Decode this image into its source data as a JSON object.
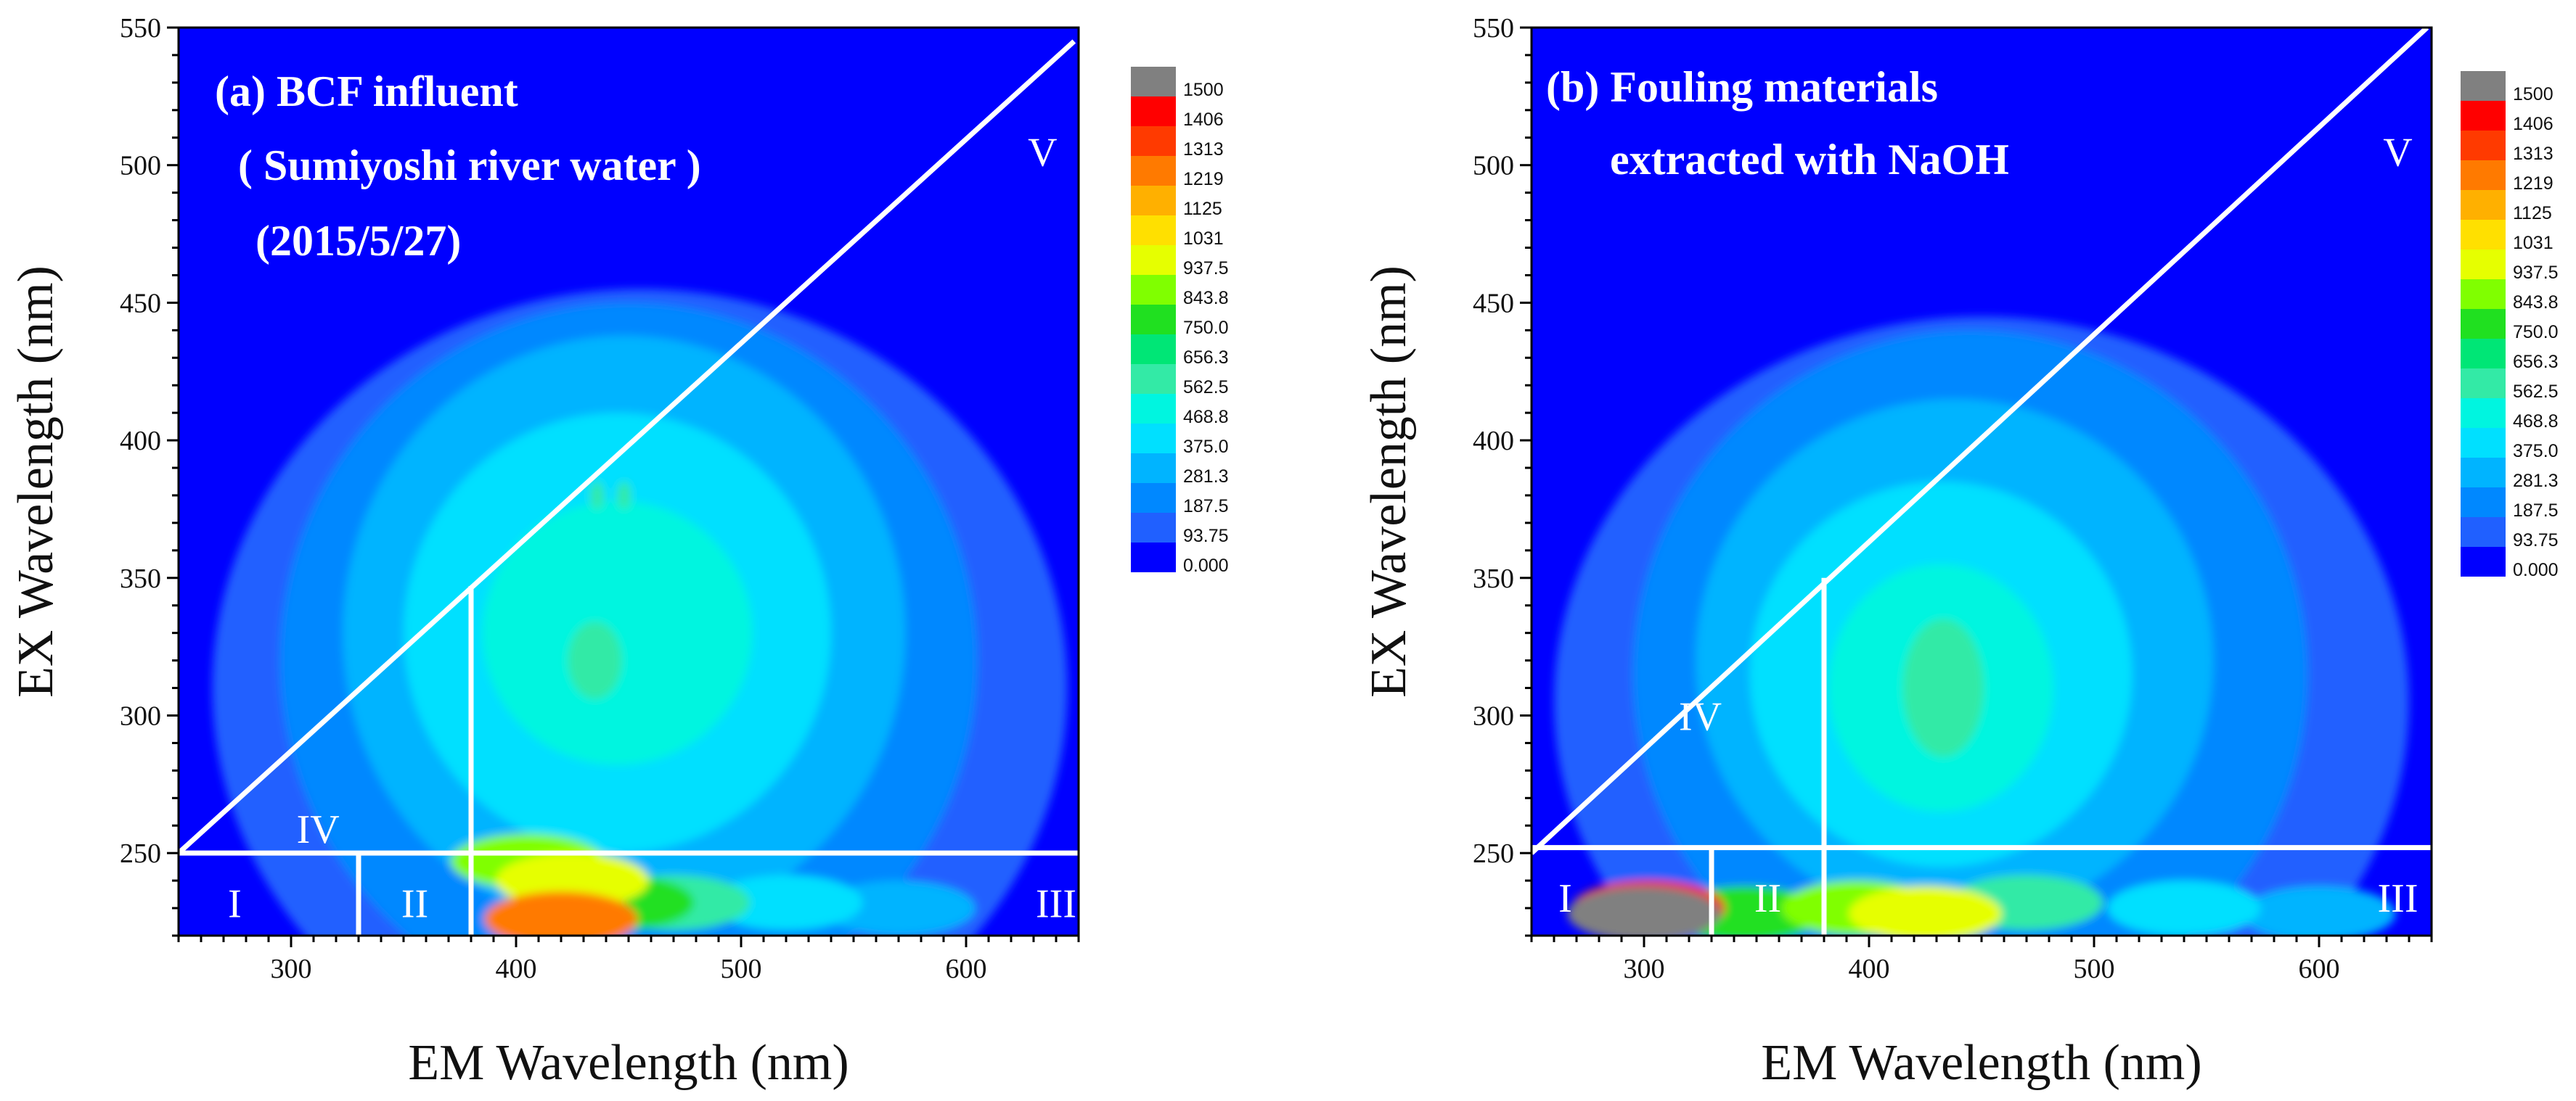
{
  "chart_data": [
    {
      "type": "heatmap",
      "subtype": "excitation-emission matrix (contour)",
      "panel_title_lines": [
        "(a) BCF influent",
        "( Sumiyoshi river water )",
        "(2015/5/27)"
      ],
      "xlabel": "EM Wavelength (nm)",
      "ylabel": "EX Wavelength (nm)",
      "xlim": [
        250,
        650
      ],
      "ylim": [
        220,
        550
      ],
      "x_ticks": [
        "300",
        "400",
        "500",
        "600"
      ],
      "y_ticks": [
        "250",
        "300",
        "350",
        "400",
        "450",
        "500",
        "550"
      ],
      "region_labels": [
        {
          "text": "I",
          "x": 275,
          "y": 232
        },
        {
          "text": "II",
          "x": 355,
          "y": 232
        },
        {
          "text": "III",
          "x": 640,
          "y": 232
        },
        {
          "text": "IV",
          "x": 312,
          "y": 259
        },
        {
          "text": "V",
          "x": 634,
          "y": 505
        }
      ],
      "region_lines": [
        {
          "from": [
            250,
            250
          ],
          "to": [
            648,
            545
          ]
        },
        {
          "from": [
            250,
            250
          ],
          "to": [
            650,
            250
          ]
        },
        {
          "from": [
            330,
            220
          ],
          "to": [
            330,
            250
          ]
        },
        {
          "from": [
            380,
            220
          ],
          "to": [
            380,
            347
          ]
        }
      ],
      "peaks": [
        {
          "ex": 320,
          "em": 435,
          "level": 562.5,
          "rx": 12,
          "ry": 14
        },
        {
          "ex": 330,
          "em": 445,
          "level": 468.8,
          "rx": 60,
          "ry": 48
        },
        {
          "ex": 330,
          "em": 445,
          "level": 375.0,
          "rx": 95,
          "ry": 80
        },
        {
          "ex": 330,
          "em": 448,
          "level": 281.3,
          "rx": 125,
          "ry": 108
        },
        {
          "ex": 320,
          "em": 450,
          "level": 187.5,
          "rx": 155,
          "ry": 130
        },
        {
          "ex": 310,
          "em": 455,
          "level": 93.75,
          "rx": 190,
          "ry": 145
        },
        {
          "ex": 380,
          "em": 436,
          "level": 562.5,
          "rx": 3,
          "ry": 5
        },
        {
          "ex": 380,
          "em": 448,
          "level": 562.5,
          "rx": 3,
          "ry": 5
        }
      ],
      "scatter_band": [
        {
          "em": 405,
          "ex": 247,
          "level": 843.8
        },
        {
          "em": 425,
          "ex": 240,
          "level": 937.5
        },
        {
          "em": 420,
          "ex": 226,
          "level": 1219
        },
        {
          "em": 445,
          "ex": 232,
          "level": 750.0
        },
        {
          "em": 470,
          "ex": 232,
          "level": 562.5
        },
        {
          "em": 520,
          "ex": 232,
          "level": 375.0
        },
        {
          "em": 570,
          "ex": 230,
          "level": 281.3
        }
      ]
    },
    {
      "type": "heatmap",
      "subtype": "excitation-emission matrix (contour)",
      "panel_title_lines": [
        "(b) Fouling materials",
        "extracted with NaOH"
      ],
      "xlabel": "EM Wavelength (nm)",
      "ylabel": "EX Wavelength (nm)",
      "xlim": [
        250,
        650
      ],
      "ylim": [
        220,
        550
      ],
      "x_ticks": [
        "300",
        "400",
        "500",
        "600"
      ],
      "y_ticks": [
        "250",
        "300",
        "350",
        "400",
        "450",
        "500",
        "550"
      ],
      "region_labels": [
        {
          "text": "I",
          "x": 265,
          "y": 234
        },
        {
          "text": "II",
          "x": 355,
          "y": 234
        },
        {
          "text": "III",
          "x": 635,
          "y": 234
        },
        {
          "text": "IV",
          "x": 325,
          "y": 300
        },
        {
          "text": "V",
          "x": 635,
          "y": 505
        }
      ],
      "region_lines": [
        {
          "from": [
            250,
            250
          ],
          "to": [
            648,
            550
          ]
        },
        {
          "from": [
            250,
            252
          ],
          "to": [
            650,
            252
          ]
        },
        {
          "from": [
            330,
            220
          ],
          "to": [
            330,
            252
          ]
        },
        {
          "from": [
            380,
            220
          ],
          "to": [
            380,
            350
          ]
        }
      ],
      "peaks": [
        {
          "ex": 310,
          "em": 433,
          "level": 562.5,
          "rx": 18,
          "ry": 25
        },
        {
          "ex": 310,
          "em": 432,
          "level": 468.8,
          "rx": 50,
          "ry": 45
        },
        {
          "ex": 315,
          "em": 432,
          "level": 375.0,
          "rx": 85,
          "ry": 70
        },
        {
          "ex": 320,
          "em": 438,
          "level": 281.3,
          "rx": 115,
          "ry": 95
        },
        {
          "ex": 315,
          "em": 445,
          "level": 187.5,
          "rx": 150,
          "ry": 125
        },
        {
          "ex": 305,
          "em": 450,
          "level": 93.75,
          "rx": 190,
          "ry": 140
        }
      ],
      "scatter_band": [
        {
          "em": 300,
          "ex": 228,
          "level": 1500
        },
        {
          "em": 302,
          "ex": 230,
          "level": 1406
        },
        {
          "em": 345,
          "ex": 228,
          "level": 750.0
        },
        {
          "em": 395,
          "ex": 230,
          "level": 843.8
        },
        {
          "em": 425,
          "ex": 228,
          "level": 937.5
        },
        {
          "em": 470,
          "ex": 232,
          "level": 562.5
        },
        {
          "em": 540,
          "ex": 230,
          "level": 375.0
        },
        {
          "em": 600,
          "ex": 228,
          "level": 281.3
        }
      ]
    }
  ],
  "colorbar": {
    "levels": [
      "1500",
      "1406",
      "1313",
      "1219",
      "1125",
      "1031",
      "937.5",
      "843.8",
      "750.0",
      "656.3",
      "562.5",
      "468.8",
      "375.0",
      "281.3",
      "187.5",
      "93.75",
      "0.000"
    ],
    "values": [
      1500,
      1406,
      1313,
      1219,
      1125,
      1031,
      937.5,
      843.8,
      750.0,
      656.3,
      562.5,
      468.8,
      375.0,
      281.3,
      187.5,
      93.75,
      0
    ],
    "colors": [
      "#808080",
      "#ff0000",
      "#ff3a00",
      "#ff7a00",
      "#ffb000",
      "#ffe000",
      "#e6ff00",
      "#80ff00",
      "#20e020",
      "#00e676",
      "#33eaa6",
      "#00f5e0",
      "#00e0ff",
      "#00b4ff",
      "#0088ff",
      "#2060ff",
      "#0000ff"
    ]
  }
}
